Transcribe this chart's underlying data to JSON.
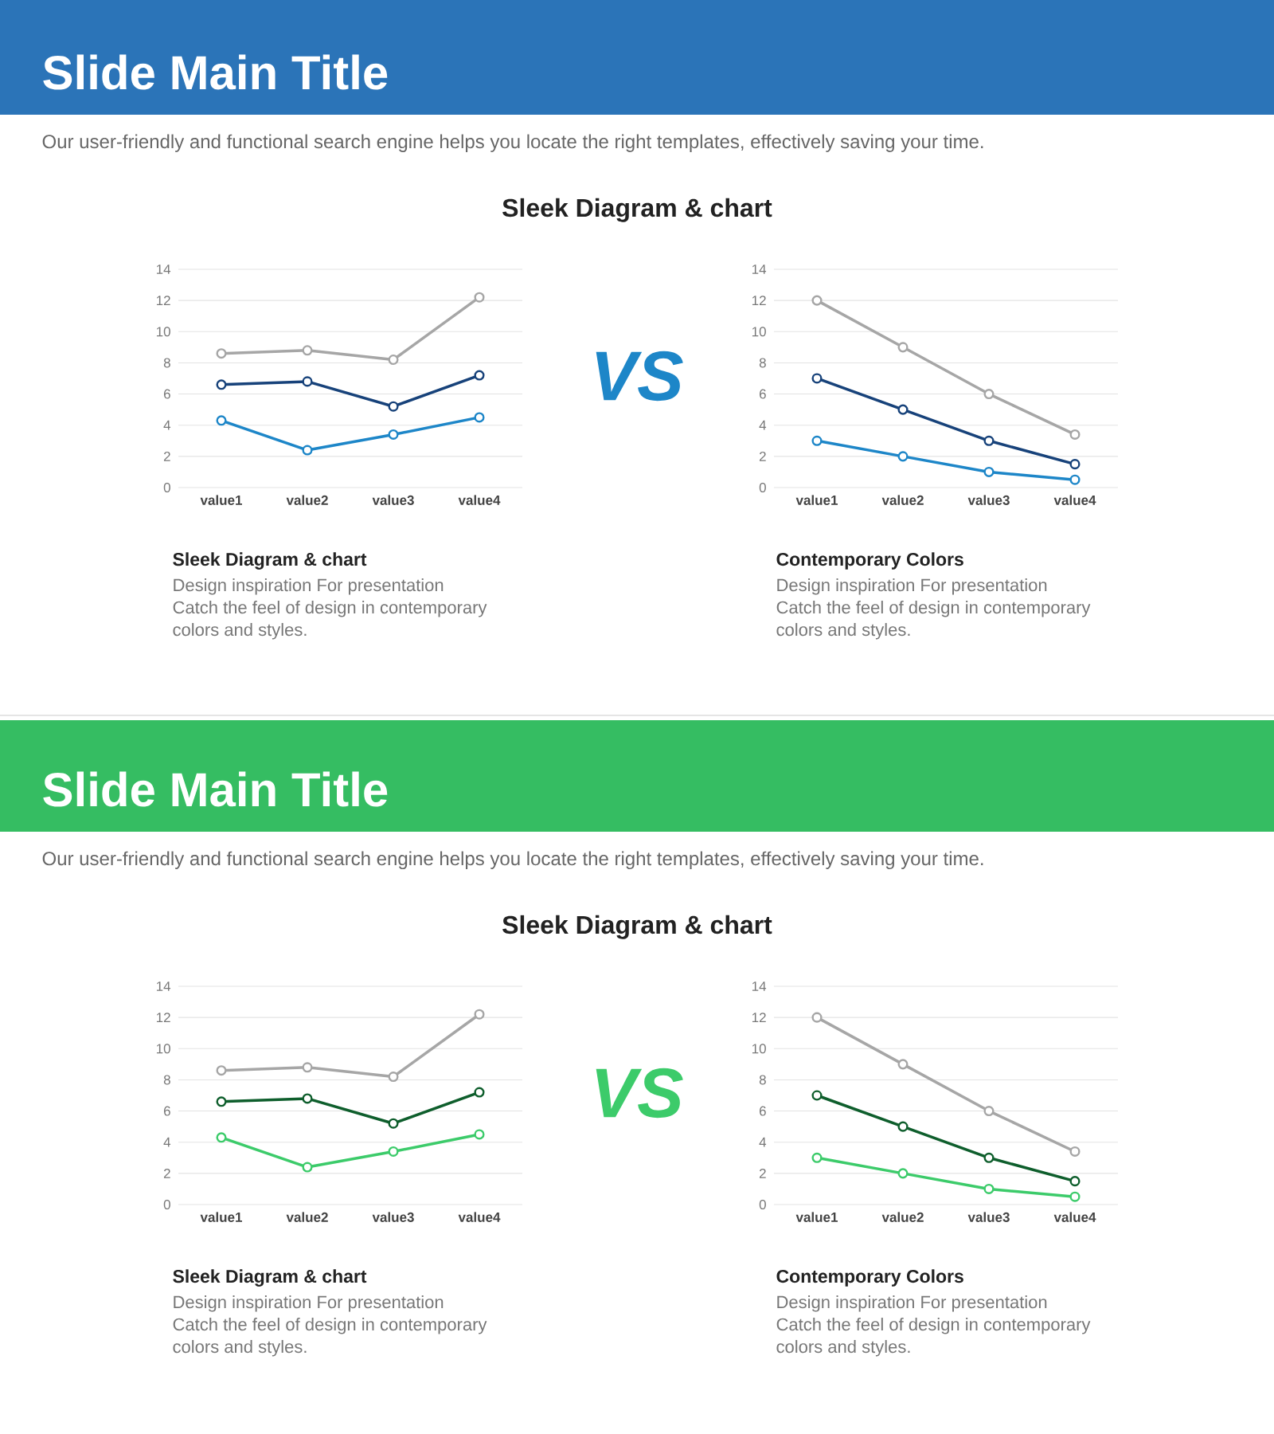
{
  "chart_data": [
    {
      "type": "line",
      "title": "Slide Main Title",
      "subtitle": "Our user-friendly and functional search engine helps you locate the right templates, effectively saving your time.",
      "categories": [
        "value1",
        "value2",
        "value3",
        "value4"
      ],
      "series": [
        {
          "color": "#a6a6a6",
          "values": [
            8.6,
            8.8,
            8.2,
            12.2
          ]
        },
        {
          "color": "#17427a",
          "values": [
            6.6,
            6.8,
            5.2,
            7.2
          ]
        },
        {
          "color": "#1d86c8",
          "values": [
            4.3,
            2.4,
            3.4,
            4.5
          ]
        }
      ],
      "ylim": [
        0,
        14
      ],
      "yticks": [
        0,
        2,
        4,
        6,
        8,
        10,
        12,
        14
      ],
      "grid": "y",
      "marker": "circle",
      "line_style": "solid",
      "annotations": [
        "Sleek Diagram & chart",
        "VS",
        "Sleek Diagram & chart",
        "Design inspiration For presentation",
        "Catch the feel of design in contemporary",
        "colors and styles."
      ]
    },
    {
      "type": "line",
      "categories": [
        "value1",
        "value2",
        "value3",
        "value4"
      ],
      "series": [
        {
          "color": "#a6a6a6",
          "values": [
            12,
            9,
            6,
            3.4
          ]
        },
        {
          "color": "#17427a",
          "values": [
            7,
            5,
            3,
            1.5
          ]
        },
        {
          "color": "#1d86c8",
          "values": [
            3,
            2,
            1,
            0.5
          ]
        }
      ],
      "ylim": [
        0,
        14
      ],
      "yticks": [
        0,
        2,
        4,
        6,
        8,
        10,
        12,
        14
      ],
      "grid": "y",
      "marker": "circle",
      "line_style": "solid",
      "annotations": [
        "Contemporary Colors",
        "Design inspiration For presentation",
        "Catch the feel of design in contemporary",
        "colors and styles."
      ]
    },
    {
      "type": "line",
      "title": "Slide Main Title",
      "subtitle": "Our user-friendly and functional search engine helps you locate the right templates, effectively saving your time.",
      "categories": [
        "value1",
        "value2",
        "value3",
        "value4"
      ],
      "series": [
        {
          "color": "#a6a6a6",
          "values": [
            8.6,
            8.8,
            8.2,
            12.2
          ]
        },
        {
          "color": "#0e5e2c",
          "values": [
            6.6,
            6.8,
            5.2,
            7.2
          ]
        },
        {
          "color": "#3ccb6a",
          "values": [
            4.3,
            2.4,
            3.4,
            4.5
          ]
        }
      ],
      "ylim": [
        0,
        14
      ],
      "yticks": [
        0,
        2,
        4,
        6,
        8,
        10,
        12,
        14
      ],
      "grid": "y",
      "marker": "circle",
      "line_style": "solid",
      "annotations": [
        "Sleek Diagram & chart",
        "VS",
        "Sleek Diagram & chart",
        "Design inspiration For presentation",
        "Catch the feel of design in contemporary",
        "colors and styles."
      ]
    },
    {
      "type": "line",
      "categories": [
        "value1",
        "value2",
        "value3",
        "value4"
      ],
      "series": [
        {
          "color": "#a6a6a6",
          "values": [
            12,
            9,
            6,
            3.4
          ]
        },
        {
          "color": "#0e5e2c",
          "values": [
            7,
            5,
            3,
            1.5
          ]
        },
        {
          "color": "#3ccb6a",
          "values": [
            3,
            2,
            1,
            0.5
          ]
        }
      ],
      "ylim": [
        0,
        14
      ],
      "yticks": [
        0,
        2,
        4,
        6,
        8,
        10,
        12,
        14
      ],
      "grid": "y",
      "marker": "circle",
      "line_style": "solid",
      "annotations": [
        "Contemporary Colors",
        "Design inspiration For presentation",
        "Catch the feel of design in contemporary",
        "colors and styles."
      ]
    }
  ]
}
